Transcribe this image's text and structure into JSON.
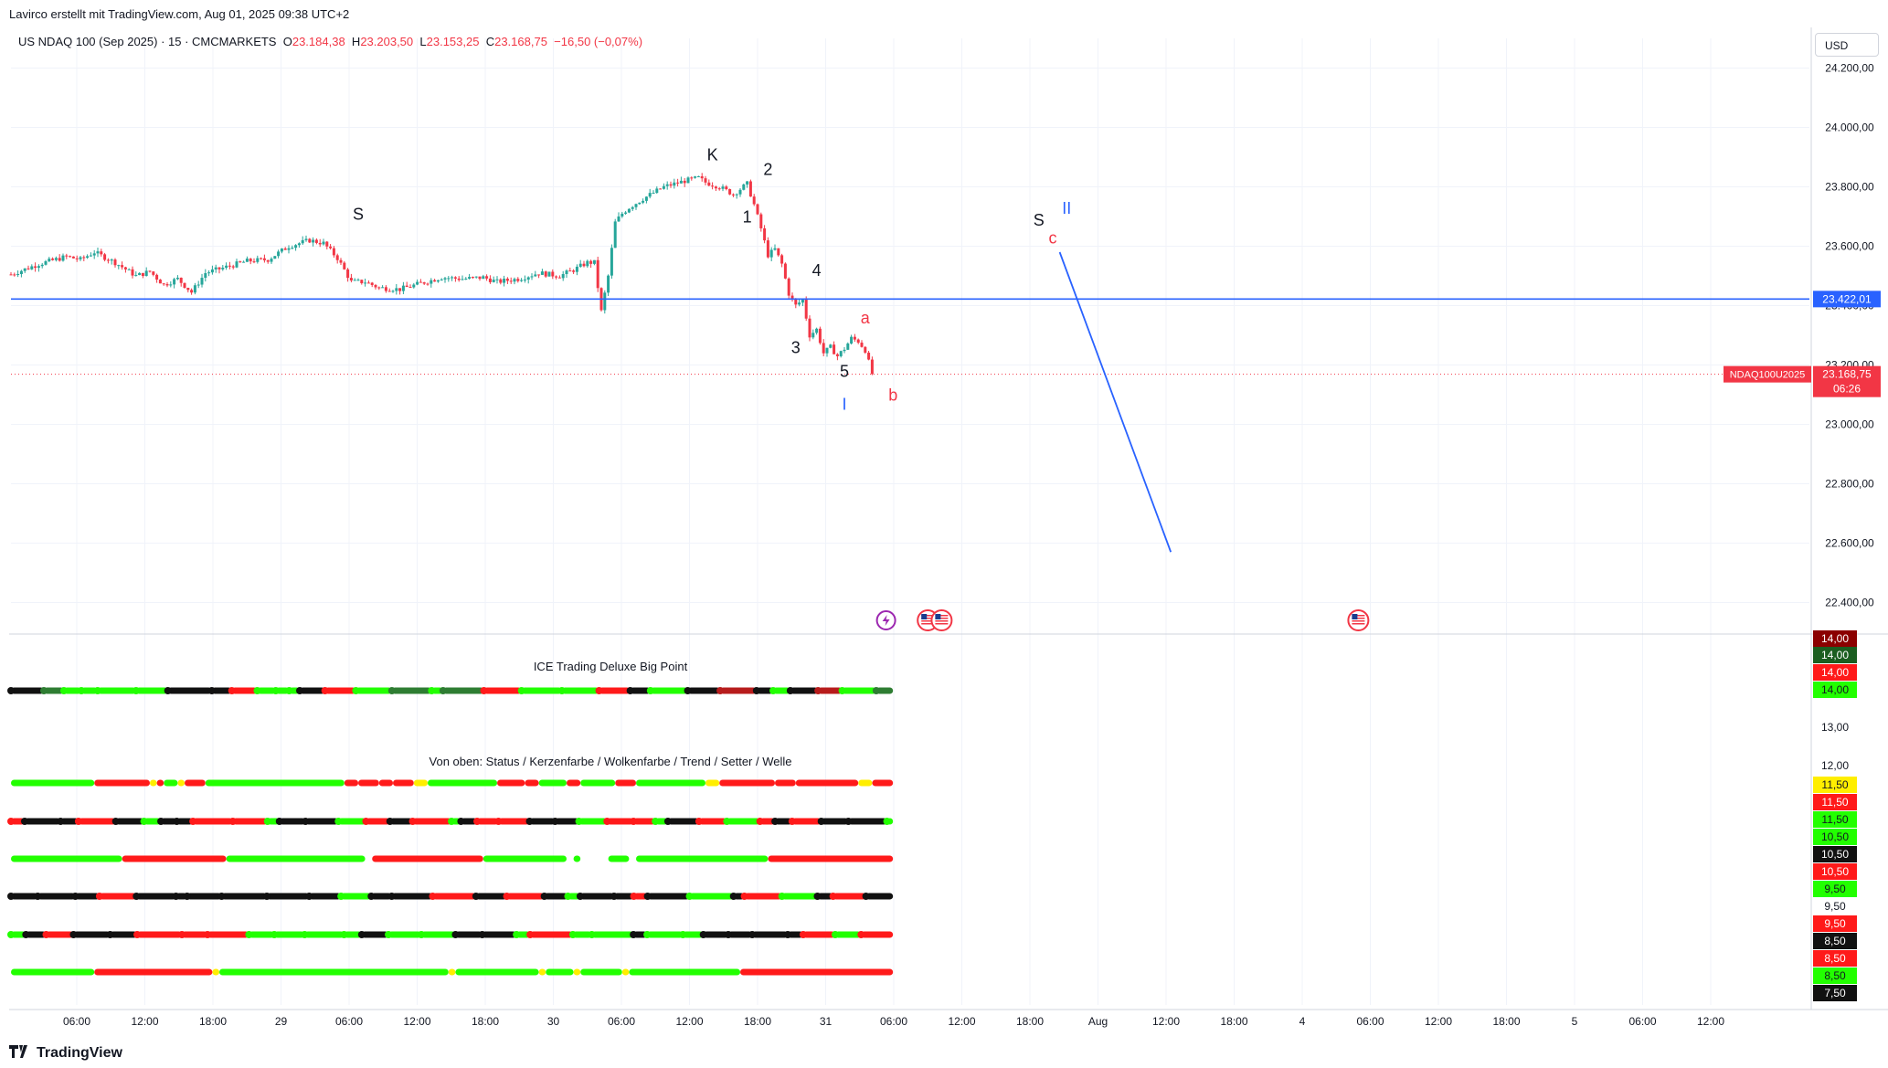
{
  "header": {
    "attribution": "Lavirco erstellt mit TradingView.com, Aug 01, 2025 09:38 UTC+2",
    "currency_button": "USD",
    "footer_brand": "TradingView"
  },
  "legend": {
    "symbol": "US NDAQ 100 (Sep 2025) · 15 · CMCMARKETS",
    "o_label": "O",
    "o_value": "23.184,38",
    "h_label": "H",
    "h_value": "23.203,50",
    "l_label": "L",
    "l_value": "23.153,25",
    "c_label": "C",
    "c_value": "23.168,75",
    "change": "−16,50 (−0,07%)"
  },
  "colors": {
    "up": "#26a69a",
    "down": "#f23645",
    "level_line": "#2962ff",
    "lime": "#22ff00",
    "red": "#ff1a1a",
    "black": "#111111",
    "yellow": "#ffee00",
    "darkgreen": "#2e7d32",
    "darkred": "#b71c1c"
  },
  "chart_data": {
    "type": "candlestick",
    "instrument": "US NDAQ 100 (Sep 2025)",
    "timeframe": "15",
    "ylim": [
      22300,
      24300
    ],
    "y_ticks": [
      "24.200,00",
      "24.000,00",
      "23.800,00",
      "23.600,00",
      "23.400,00",
      "23.200,00",
      "23.000,00",
      "22.800,00",
      "22.600,00",
      "22.400,00"
    ],
    "x_ticks": [
      "06:00",
      "12:00",
      "18:00",
      "29",
      "06:00",
      "12:00",
      "18:00",
      "30",
      "06:00",
      "12:00",
      "18:00",
      "31",
      "06:00",
      "12:00",
      "18:00",
      "Aug",
      "12:00",
      "18:00",
      "4",
      "06:00",
      "12:00",
      "18:00",
      "5",
      "06:00",
      "12:00"
    ],
    "price_path": [
      [
        0,
        23505
      ],
      [
        4,
        23540
      ],
      [
        8,
        23565
      ],
      [
        10,
        23555
      ],
      [
        12,
        23580
      ],
      [
        15,
        23545
      ],
      [
        18,
        23500
      ],
      [
        20,
        23515
      ],
      [
        22,
        23470
      ],
      [
        24,
        23490
      ],
      [
        26,
        23445
      ],
      [
        28,
        23510
      ],
      [
        31,
        23530
      ],
      [
        34,
        23550
      ],
      [
        37,
        23555
      ],
      [
        40,
        23600
      ],
      [
        43,
        23620
      ],
      [
        45,
        23610
      ],
      [
        47,
        23560
      ],
      [
        49,
        23480
      ],
      [
        51,
        23480
      ],
      [
        53,
        23460
      ],
      [
        56,
        23455
      ],
      [
        59,
        23475
      ],
      [
        62,
        23495
      ],
      [
        65,
        23490
      ],
      [
        68,
        23495
      ],
      [
        70,
        23480
      ],
      [
        73,
        23490
      ],
      [
        76,
        23510
      ],
      [
        79,
        23500
      ],
      [
        81,
        23520
      ],
      [
        83,
        23545
      ],
      [
        84,
        23545
      ],
      [
        85,
        23380
      ],
      [
        86,
        23500
      ],
      [
        87,
        23680
      ],
      [
        88,
        23710
      ],
      [
        89,
        23730
      ],
      [
        91,
        23760
      ],
      [
        94,
        23800
      ],
      [
        97,
        23820
      ],
      [
        99,
        23830
      ],
      [
        100,
        23815
      ],
      [
        102,
        23800
      ],
      [
        104,
        23775
      ],
      [
        106,
        23810
      ],
      [
        107,
        23740
      ],
      [
        108,
        23660
      ],
      [
        109,
        23570
      ],
      [
        110,
        23590
      ],
      [
        111,
        23540
      ],
      [
        112,
        23440
      ],
      [
        113,
        23400
      ],
      [
        114,
        23420
      ],
      [
        115,
        23300
      ],
      [
        116,
        23320
      ],
      [
        117,
        23240
      ],
      [
        118,
        23260
      ],
      [
        119,
        23230
      ],
      [
        120,
        23255
      ],
      [
        121,
        23290
      ],
      [
        122,
        23280
      ],
      [
        123,
        23250
      ],
      [
        124,
        23170
      ]
    ],
    "last_price": "23.168,75",
    "last_price_label": "NDAQ100U2025",
    "countdown": "06:26",
    "horizontal_level": "23.422,01",
    "projection_line": {
      "from": [
        151,
        23580
      ],
      "to": [
        167,
        22570
      ]
    },
    "wave_labels": [
      {
        "text": "S",
        "x": 50,
        "y": 23690,
        "color": "#131722"
      },
      {
        "text": "K",
        "x": 101,
        "y": 23890,
        "color": "#131722"
      },
      {
        "text": "1",
        "x": 106,
        "y": 23680,
        "color": "#131722"
      },
      {
        "text": "2",
        "x": 109,
        "y": 23840,
        "color": "#131722"
      },
      {
        "text": "3",
        "x": 113,
        "y": 23240,
        "color": "#131722"
      },
      {
        "text": "4",
        "x": 116,
        "y": 23500,
        "color": "#131722"
      },
      {
        "text": "5",
        "x": 120,
        "y": 23160,
        "color": "#131722"
      },
      {
        "text": "I",
        "x": 120,
        "y": 23050,
        "color": "#2962ff"
      },
      {
        "text": "a",
        "x": 123,
        "y": 23340,
        "color": "#f23645"
      },
      {
        "text": "b",
        "x": 127,
        "y": 23080,
        "color": "#f23645"
      },
      {
        "text": "S",
        "x": 148,
        "y": 23670,
        "color": "#131722"
      },
      {
        "text": "c",
        "x": 150,
        "y": 23610,
        "color": "#f23645"
      },
      {
        "text": "II",
        "x": 152,
        "y": 23710,
        "color": "#2962ff"
      }
    ],
    "event_icons": [
      {
        "x": 126,
        "kind": "lightning"
      },
      {
        "x": 132,
        "kind": "us-flag"
      },
      {
        "x": 134,
        "kind": "us-flag"
      },
      {
        "x": 194,
        "kind": "us-flag"
      }
    ],
    "indicator_1": {
      "title": "ICE Trading Deluxe Big Point",
      "right_axis": [
        "14,00",
        "14,00",
        "14,00",
        "14,00",
        "13,00",
        "12,00"
      ],
      "right_axis_colors": [
        "#8b0000",
        "#1b5e20",
        "#ff1a1a",
        "#22ff00",
        "none",
        "none"
      ]
    },
    "indicator_2": {
      "title": "Von oben: Status / Kerzenfarbe / Wolkenfarbe / Trend / Setter / Welle",
      "right_axis": [
        "11,50",
        "11,50",
        "11,50",
        "10,50",
        "10,50",
        "10,50",
        "9,50",
        "9,50",
        "9,50",
        "8,50",
        "8,50",
        "8,50",
        "7,50"
      ],
      "right_axis_colors": [
        "#ffee00",
        "#ff1a1a",
        "#22ff00",
        "#22ff00",
        "#111111",
        "#ff1a1a",
        "#22ff00",
        "none",
        "#ff1a1a",
        "#111111",
        "#ff1a1a",
        "#22ff00",
        "#111111"
      ],
      "rows": [
        {
          "name": "Status",
          "segments": [
            [
              0,
              12,
              "lime"
            ],
            [
              12,
              20,
              "red"
            ],
            [
              20,
              21,
              "yellow"
            ],
            [
              21,
              22,
              "red"
            ],
            [
              22,
              24,
              "lime"
            ],
            [
              24,
              25,
              "yellow"
            ],
            [
              25,
              28,
              "red"
            ],
            [
              28,
              48,
              "lime"
            ],
            [
              48,
              50,
              "red"
            ],
            [
              50,
              53,
              "red"
            ],
            [
              53,
              55,
              "red"
            ],
            [
              55,
              58,
              "red"
            ],
            [
              58,
              60,
              "yellow"
            ],
            [
              60,
              70,
              "lime"
            ],
            [
              70,
              74,
              "red"
            ],
            [
              74,
              76,
              "red"
            ],
            [
              76,
              80,
              "lime"
            ],
            [
              80,
              82,
              "red"
            ],
            [
              82,
              87,
              "lime"
            ],
            [
              87,
              90,
              "red"
            ],
            [
              90,
              100,
              "lime"
            ],
            [
              100,
              102,
              "yellow"
            ],
            [
              102,
              110,
              "red"
            ],
            [
              110,
              113,
              "red"
            ],
            [
              113,
              122,
              "red"
            ],
            [
              122,
              124,
              "yellow"
            ],
            [
              124,
              127,
              "red"
            ]
          ]
        },
        {
          "name": "Kerzenfarbe",
          "segments": [
            [
              0,
              127,
              "mix_black_red_lime"
            ]
          ]
        },
        {
          "name": "Wolkenfarbe",
          "segments": [
            [
              0,
              16,
              "lime"
            ],
            [
              16,
              31,
              "red"
            ],
            [
              31,
              51,
              "lime"
            ],
            [
              52,
              68,
              "red"
            ],
            [
              68,
              80,
              "lime"
            ],
            [
              81,
              82,
              "lime"
            ],
            [
              86,
              89,
              "lime"
            ],
            [
              90,
              109,
              "lime"
            ],
            [
              109,
              127,
              "red"
            ]
          ]
        },
        {
          "name": "Trend",
          "segments": [
            [
              0,
              127,
              "mix_black_red_lime_2"
            ]
          ]
        },
        {
          "name": "Setter",
          "segments": [
            [
              0,
              127,
              "mix_black_red_lime_3"
            ]
          ]
        },
        {
          "name": "Welle",
          "segments": [
            [
              0,
              12,
              "lime"
            ],
            [
              12,
              29,
              "red"
            ],
            [
              29,
              30,
              "yellow"
            ],
            [
              30,
              63,
              "lime"
            ],
            [
              63,
              64,
              "yellow"
            ],
            [
              64,
              76,
              "lime"
            ],
            [
              76,
              77,
              "yellow"
            ],
            [
              77,
              81,
              "lime"
            ],
            [
              81,
              82,
              "yellow"
            ],
            [
              82,
              88,
              "lime"
            ],
            [
              88,
              89,
              "yellow"
            ],
            [
              89,
              105,
              "lime"
            ],
            [
              105,
              127,
              "red"
            ]
          ]
        }
      ]
    }
  }
}
